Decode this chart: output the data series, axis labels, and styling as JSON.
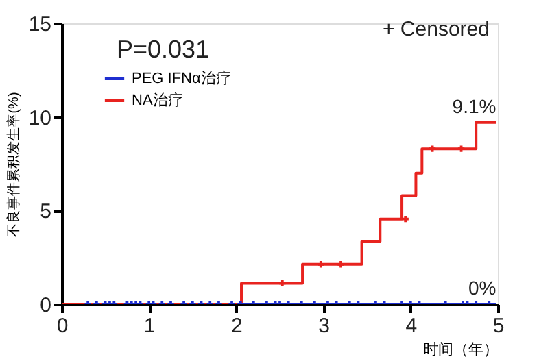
{
  "chart_data": {
    "type": "step",
    "xlabel": "时间（年）",
    "ylabel": "不良事件累积发生率(%)",
    "xlim": [
      0,
      5
    ],
    "xticks": [
      0,
      1,
      2,
      3,
      4,
      5
    ],
    "ylim": [
      0,
      15
    ],
    "yticks": [
      0,
      5,
      10,
      15
    ],
    "grid": false,
    "legend": "top left",
    "series": [
      {
        "name": "PEG IFNα治疗",
        "color": "#1f2fd0",
        "x": [
          0,
          4.98
        ],
        "values": [
          0,
          0
        ]
      },
      {
        "name": "NA治疗",
        "color": "#e8231f",
        "x": [
          0,
          2.06,
          2.76,
          3.44,
          3.65,
          3.9,
          4.06,
          4.13,
          4.75,
          4.98
        ],
        "values": [
          0,
          1.12,
          2.13,
          3.35,
          4.55,
          5.8,
          7.0,
          8.3,
          9.7,
          9.7
        ]
      },
      {
        "color": "#1f2fd0",
        "type": "scatter",
        "marker": "cross",
        "x": [
          0.3,
          0.4,
          0.5,
          0.55,
          0.6,
          0.75,
          0.8,
          0.85,
          0.9,
          1.0,
          1.05,
          1.15,
          1.25,
          1.4,
          1.5,
          1.6,
          1.7,
          1.8,
          1.95,
          2.05,
          2.2,
          2.35,
          2.45,
          2.5,
          2.6,
          2.75,
          2.9,
          3.05,
          3.15,
          3.3,
          3.4,
          3.6,
          3.7,
          3.9,
          4.0,
          4.1,
          4.4,
          4.6,
          4.65,
          4.75,
          4.9
        ],
        "values": [
          0,
          0,
          0,
          0,
          0,
          0,
          0,
          0,
          0,
          0,
          0,
          0,
          0,
          0,
          0,
          0,
          0,
          0,
          0,
          0,
          0,
          0,
          0,
          0,
          0,
          0,
          0,
          0,
          0,
          0,
          0,
          0,
          0,
          0,
          0,
          0,
          0,
          0,
          0,
          0,
          0
        ]
      },
      {
        "color": "#e8231f",
        "type": "scatter",
        "marker": "cross",
        "x": [
          2.53,
          2.97,
          3.2,
          3.94,
          4.25,
          4.58
        ],
        "values": [
          1.12,
          2.13,
          2.13,
          4.55,
          8.3,
          8.3
        ]
      }
    ],
    "annotations": [
      "P=0.031",
      "+ Censored",
      {
        "text": "9.1%",
        "x": 4.98,
        "y": 9.7
      },
      {
        "text": "0%",
        "x": 4.98,
        "y": 0
      }
    ]
  }
}
